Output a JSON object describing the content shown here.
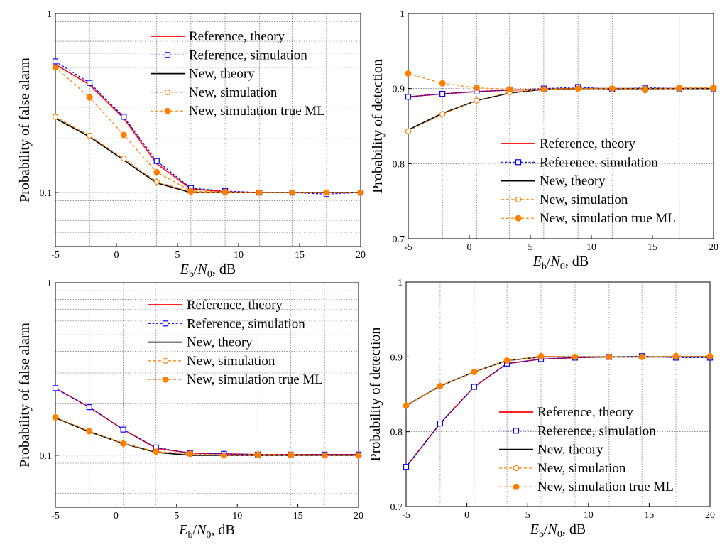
{
  "chart_data": [
    {
      "type": "line",
      "ylabel": "Probability of false alarm",
      "xlabel": {
        "e": "E",
        "e_sub": "b",
        "slash": "/",
        "n": "N",
        "n_sub": "0",
        "unit": ", dB"
      },
      "xlim": [
        -5,
        20
      ],
      "ylim": [
        0.05,
        1
      ],
      "yscale": "log",
      "xticks": [
        -5,
        0,
        5,
        10,
        15,
        20
      ],
      "yticks": [
        {
          "v": 0.1,
          "label": "0.1"
        },
        {
          "v": 1,
          "label": "1"
        }
      ],
      "grid": true,
      "legend_position": "top-right",
      "x": [
        -5,
        -2.2,
        0.6,
        3.3,
        6.1,
        8.9,
        11.7,
        14.4,
        17.2,
        20
      ],
      "series": [
        {
          "name": "Reference, theory",
          "color": "#ff0000",
          "dash": "solid",
          "marker": "none",
          "values": [
            0.52,
            0.4,
            0.26,
            0.145,
            0.105,
            0.101,
            0.1,
            0.1,
            0.1,
            0.1
          ]
        },
        {
          "name": "Reference, simulation",
          "color": "#0000ff",
          "dash": "dotted",
          "marker": "square",
          "values": [
            0.54,
            0.41,
            0.265,
            0.15,
            0.106,
            0.102,
            0.1,
            0.1,
            0.098,
            0.1
          ]
        },
        {
          "name": "New, theory",
          "color": "#000000",
          "dash": "solid",
          "marker": "none",
          "values": [
            0.26,
            0.205,
            0.152,
            0.113,
            0.1,
            0.1,
            0.1,
            0.1,
            0.1,
            0.1
          ]
        },
        {
          "name": "New, simulation",
          "color": "#ff8000",
          "dash": "dashed",
          "marker": "open-circle",
          "values": [
            0.265,
            0.208,
            0.155,
            0.115,
            0.101,
            0.1,
            0.1,
            0.1,
            0.1,
            0.1
          ]
        },
        {
          "name": "New, simulation true ML",
          "color": "#ff8000",
          "dash": "dashed",
          "marker": "filled-circle",
          "values": [
            0.5,
            0.34,
            0.21,
            0.13,
            0.102,
            0.101,
            0.1,
            0.1,
            0.1,
            0.1
          ]
        }
      ]
    },
    {
      "type": "line",
      "ylabel": "Probability of detection",
      "xlabel": {
        "e": "E",
        "e_sub": "b",
        "slash": "/",
        "n": "N",
        "n_sub": "0",
        "unit": ", dB"
      },
      "xlim": [
        -5,
        20
      ],
      "ylim": [
        0.7,
        1
      ],
      "yscale": "linear",
      "xticks": [
        -5,
        0,
        5,
        10,
        15,
        20
      ],
      "yticks": [
        {
          "v": 0.7,
          "label": "0.7"
        },
        {
          "v": 0.8,
          "label": "0.8"
        },
        {
          "v": 0.9,
          "label": "0.9"
        },
        {
          "v": 1,
          "label": "1"
        }
      ],
      "grid": true,
      "legend_position": "right",
      "x": [
        -5,
        -2.2,
        0.6,
        3.3,
        6.1,
        8.9,
        11.7,
        14.4,
        17.2,
        20
      ],
      "series": [
        {
          "name": "Reference, theory",
          "color": "#ff0000",
          "dash": "solid",
          "marker": "none",
          "values": [
            0.889,
            0.893,
            0.896,
            0.898,
            0.899,
            0.9,
            0.9,
            0.9,
            0.9,
            0.9
          ]
        },
        {
          "name": "Reference, simulation",
          "color": "#0000ff",
          "dash": "dotted",
          "marker": "square",
          "values": [
            0.889,
            0.893,
            0.896,
            0.898,
            0.9,
            0.902,
            0.899,
            0.901,
            0.9,
            0.9
          ]
        },
        {
          "name": "New, theory",
          "color": "#000000",
          "dash": "solid",
          "marker": "none",
          "values": [
            0.845,
            0.867,
            0.884,
            0.894,
            0.899,
            0.9,
            0.9,
            0.9,
            0.9,
            0.9
          ]
        },
        {
          "name": "New, simulation",
          "color": "#ff8000",
          "dash": "dashed",
          "marker": "open-circle",
          "values": [
            0.843,
            0.866,
            0.884,
            0.895,
            0.899,
            0.9,
            0.9,
            0.9,
            0.9,
            0.9
          ]
        },
        {
          "name": "New, simulation true ML",
          "color": "#ff8000",
          "dash": "dashed",
          "marker": "filled-circle",
          "values": [
            0.92,
            0.907,
            0.901,
            0.899,
            0.899,
            0.9,
            0.9,
            0.898,
            0.901,
            0.901
          ]
        }
      ]
    },
    {
      "type": "line",
      "ylabel": "Probability of false alarm",
      "xlabel": {
        "e": "E",
        "e_sub": "b",
        "slash": "/",
        "n": "N",
        "n_sub": "0",
        "unit": ", dB"
      },
      "xlim": [
        -5,
        20
      ],
      "ylim": [
        0.05,
        1
      ],
      "yscale": "log",
      "xticks": [
        -5,
        0,
        5,
        10,
        15,
        20
      ],
      "yticks": [
        {
          "v": 0.1,
          "label": "0.1"
        },
        {
          "v": 1,
          "label": "1"
        }
      ],
      "grid": true,
      "legend_position": "top-right",
      "x": [
        -5,
        -2.2,
        0.6,
        3.3,
        6.1,
        8.9,
        11.7,
        14.4,
        17.2,
        20
      ],
      "series": [
        {
          "name": "Reference, theory",
          "color": "#ff0000",
          "dash": "solid",
          "marker": "none",
          "values": [
            0.245,
            0.19,
            0.141,
            0.11,
            0.103,
            0.102,
            0.101,
            0.101,
            0.101,
            0.101
          ]
        },
        {
          "name": "Reference, simulation",
          "color": "#0000ff",
          "dash": "dotted",
          "marker": "square",
          "values": [
            0.245,
            0.19,
            0.141,
            0.111,
            0.103,
            0.102,
            0.101,
            0.101,
            0.101,
            0.101
          ]
        },
        {
          "name": "New, theory",
          "color": "#000000",
          "dash": "solid",
          "marker": "none",
          "values": [
            0.165,
            0.137,
            0.117,
            0.104,
            0.1,
            0.1,
            0.1,
            0.1,
            0.1,
            0.1
          ]
        },
        {
          "name": "New, simulation",
          "color": "#ff8000",
          "dash": "dashed",
          "marker": "open-circle",
          "values": [
            0.166,
            0.138,
            0.117,
            0.105,
            0.102,
            0.1,
            0.1,
            0.1,
            0.1,
            0.1
          ]
        },
        {
          "name": "New, simulation true ML",
          "color": "#ff8000",
          "dash": "dashed",
          "marker": "filled-circle",
          "values": [
            0.166,
            0.138,
            0.117,
            0.105,
            0.102,
            0.1,
            0.101,
            0.101,
            0.1,
            0.1
          ]
        }
      ]
    },
    {
      "type": "line",
      "ylabel": "Probability of detection",
      "xlabel": {
        "e": "E",
        "e_sub": "b",
        "slash": "/",
        "n": "N",
        "n_sub": "0",
        "unit": ", dB"
      },
      "xlim": [
        -5,
        20
      ],
      "ylim": [
        0.7,
        1
      ],
      "yscale": "linear",
      "xticks": [
        -5,
        0,
        5,
        10,
        15,
        20
      ],
      "yticks": [
        {
          "v": 0.7,
          "label": "0.7"
        },
        {
          "v": 0.8,
          "label": "0.8"
        },
        {
          "v": 0.9,
          "label": "0.9"
        },
        {
          "v": 1,
          "label": "1"
        }
      ],
      "grid": true,
      "legend_position": "bottom-right",
      "x": [
        -5,
        -2.2,
        0.6,
        3.3,
        6.1,
        8.9,
        11.7,
        14.4,
        17.2,
        20
      ],
      "series": [
        {
          "name": "Reference, theory",
          "color": "#ff0000",
          "dash": "solid",
          "marker": "none",
          "values": [
            0.753,
            0.811,
            0.86,
            0.891,
            0.897,
            0.899,
            0.9,
            0.9,
            0.9,
            0.9
          ]
        },
        {
          "name": "Reference, simulation",
          "color": "#0000ff",
          "dash": "dotted",
          "marker": "square",
          "values": [
            0.753,
            0.811,
            0.86,
            0.891,
            0.897,
            0.899,
            0.9,
            0.901,
            0.899,
            0.899
          ]
        },
        {
          "name": "New, theory",
          "color": "#000000",
          "dash": "solid",
          "marker": "none",
          "values": [
            0.835,
            0.861,
            0.88,
            0.895,
            0.9,
            0.9,
            0.9,
            0.9,
            0.9,
            0.9
          ]
        },
        {
          "name": "New, simulation",
          "color": "#ff8000",
          "dash": "dashed",
          "marker": "open-circle",
          "values": [
            0.835,
            0.861,
            0.88,
            0.895,
            0.9,
            0.9,
            0.9,
            0.9,
            0.9,
            0.9
          ]
        },
        {
          "name": "New, simulation true ML",
          "color": "#ff8000",
          "dash": "dashed",
          "marker": "filled-circle",
          "values": [
            0.835,
            0.861,
            0.88,
            0.895,
            0.901,
            0.9,
            0.9,
            0.9,
            0.901,
            0.901
          ]
        }
      ]
    }
  ]
}
